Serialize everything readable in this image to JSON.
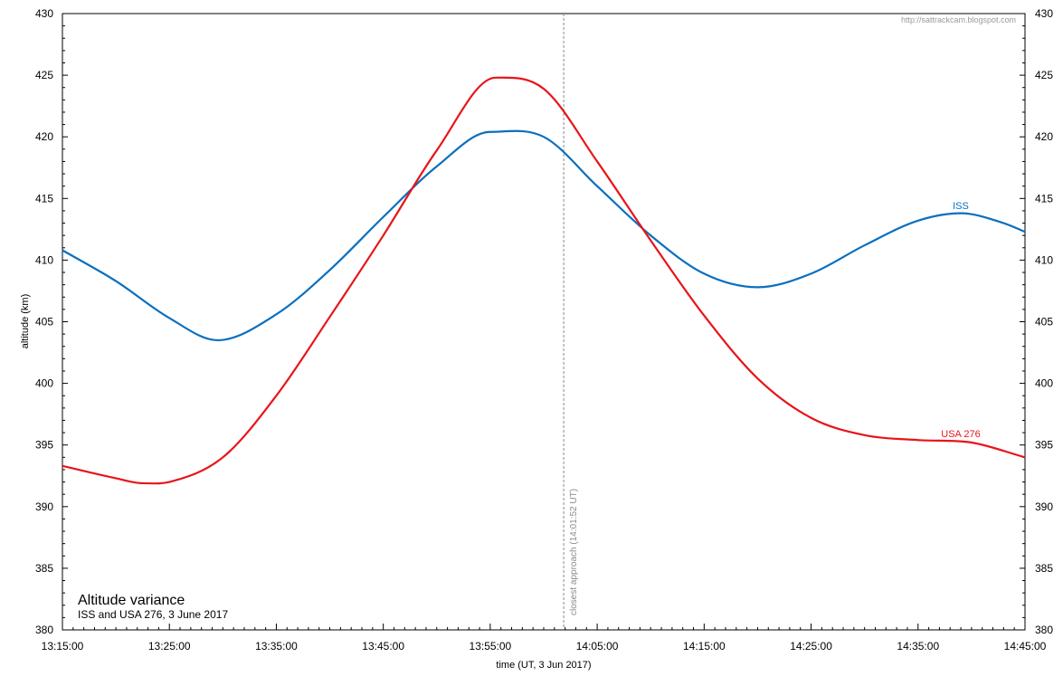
{
  "chart_data": {
    "type": "line",
    "title": "Altitude variance",
    "subtitle": "ISS and USA 276, 3 June 2017",
    "xlabel": "time  (UT, 3 Jun 2017)",
    "ylabel": "altitude (km)",
    "credit": "http://sattrackcam.blogspot.com",
    "x_unit": "minutes after 13:15:00 UT",
    "xlim": [
      0,
      90
    ],
    "ylim": [
      380,
      430
    ],
    "x_ticks": [
      {
        "value": 0,
        "label": "13:15:00"
      },
      {
        "value": 10,
        "label": "13:25:00"
      },
      {
        "value": 20,
        "label": "13:35:00"
      },
      {
        "value": 30,
        "label": "13:45:00"
      },
      {
        "value": 40,
        "label": "13:55:00"
      },
      {
        "value": 50,
        "label": "14:05:00"
      },
      {
        "value": 60,
        "label": "14:15:00"
      },
      {
        "value": 70,
        "label": "14:25:00"
      },
      {
        "value": 80,
        "label": "14:35:00"
      },
      {
        "value": 90,
        "label": "14:45:00"
      }
    ],
    "y_ticks": [
      380,
      385,
      390,
      395,
      400,
      405,
      410,
      415,
      420,
      425,
      430
    ],
    "annotation": {
      "x": 46.87,
      "text": "closest approach  (14:01:52 UT)",
      "color": "#8a8a8a"
    },
    "series": [
      {
        "name": "ISS",
        "color": "#0a6fbe",
        "x": [
          0,
          5,
          10,
          14.5,
          20,
          25,
          30,
          35,
          40,
          45,
          50,
          55,
          60,
          65,
          70,
          75,
          80,
          84,
          88,
          90
        ],
        "y": [
          410.8,
          408.3,
          405.3,
          403.5,
          405.6,
          409.2,
          413.5,
          417.6,
          420.4,
          420.0,
          416.0,
          412.0,
          408.9,
          407.8,
          408.9,
          411.2,
          413.2,
          413.8,
          413.0,
          412.3
        ]
      },
      {
        "name": "USA 276",
        "color": "#e8141b",
        "x": [
          0,
          5,
          7.5,
          10,
          15,
          20,
          25,
          30,
          35,
          40.5,
          45,
          50,
          55,
          60,
          65,
          70,
          75,
          80,
          85,
          90
        ],
        "y": [
          393.3,
          392.3,
          391.9,
          392.0,
          394.0,
          399.0,
          405.4,
          412.0,
          418.9,
          424.8,
          423.9,
          418.0,
          411.6,
          405.5,
          400.4,
          397.2,
          395.8,
          395.4,
          395.2,
          394.0
        ]
      }
    ]
  }
}
